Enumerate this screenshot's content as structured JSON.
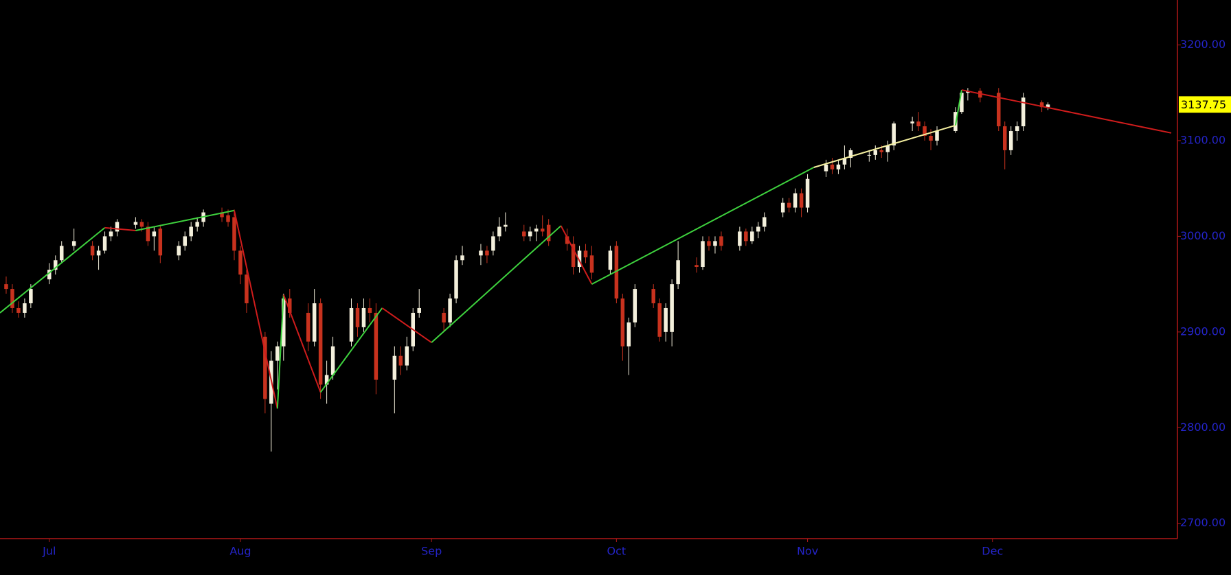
{
  "chart_data": {
    "type": "candlestick",
    "xlim": [
      0,
      191
    ],
    "ylim": [
      2684,
      3247
    ],
    "xticks": [
      {
        "value": 8,
        "label": "Jul"
      },
      {
        "value": 39,
        "label": "Aug"
      },
      {
        "value": 70,
        "label": "Sep"
      },
      {
        "value": 100,
        "label": "Oct"
      },
      {
        "value": 131,
        "label": "Nov"
      },
      {
        "value": 161,
        "label": "Dec"
      }
    ],
    "yticks": [
      {
        "value": 2700,
        "label": "2700.00"
      },
      {
        "value": 2800,
        "label": "2800.00"
      },
      {
        "value": 2900,
        "label": "2900.00"
      },
      {
        "value": 3000,
        "label": "3000.00"
      },
      {
        "value": 3100,
        "label": "3100.00"
      },
      {
        "value": 3200,
        "label": "3200.00"
      }
    ],
    "up_color": "#f4f0dc",
    "down_color": "#c8321e",
    "axis_color": "#b01818",
    "label_color": "#2424c8",
    "x": [
      1,
      2,
      3,
      4,
      5,
      8,
      9,
      10,
      12,
      15,
      16,
      17,
      18,
      19,
      22,
      23,
      24,
      25,
      26,
      29,
      30,
      31,
      32,
      33,
      36,
      37,
      38,
      39,
      40,
      43,
      44,
      45,
      46,
      47,
      50,
      51,
      52,
      53,
      54,
      57,
      58,
      59,
      60,
      61,
      64,
      65,
      66,
      67,
      68,
      72,
      73,
      74,
      75,
      78,
      79,
      80,
      81,
      82,
      85,
      86,
      87,
      88,
      89,
      92,
      93,
      94,
      95,
      96,
      99,
      100,
      101,
      102,
      103,
      106,
      107,
      108,
      109,
      110,
      113,
      114,
      115,
      116,
      117,
      120,
      121,
      122,
      123,
      124,
      127,
      128,
      129,
      130,
      131,
      134,
      135,
      136,
      137,
      138,
      141,
      142,
      143,
      144,
      145,
      148,
      149,
      150,
      151,
      152,
      155,
      156,
      157,
      159,
      162,
      163,
      164,
      165,
      166,
      169,
      170
    ],
    "ohlc": [
      [
        2950,
        2958,
        2940,
        2945
      ],
      [
        2945,
        2950,
        2920,
        2925
      ],
      [
        2925,
        2932,
        2915,
        2920
      ],
      [
        2920,
        2935,
        2915,
        2930
      ],
      [
        2930,
        2950,
        2925,
        2945
      ],
      [
        2955,
        2972,
        2950,
        2965
      ],
      [
        2965,
        2980,
        2960,
        2975
      ],
      [
        2975,
        2995,
        2972,
        2990
      ],
      [
        2990,
        3008,
        2985,
        2995
      ],
      [
        2990,
        2995,
        2975,
        2980
      ],
      [
        2980,
        2990,
        2965,
        2985
      ],
      [
        2985,
        3005,
        2982,
        3000
      ],
      [
        3000,
        3010,
        2995,
        3005
      ],
      [
        3005,
        3018,
        3000,
        3015
      ],
      [
        3012,
        3020,
        3008,
        3015
      ],
      [
        3015,
        3018,
        3005,
        3010
      ],
      [
        3010,
        3015,
        2990,
        2995
      ],
      [
        3000,
        3010,
        2985,
        3005
      ],
      [
        3008,
        3012,
        2972,
        2980
      ],
      [
        2980,
        2995,
        2975,
        2990
      ],
      [
        2990,
        3005,
        2985,
        3000
      ],
      [
        3000,
        3015,
        2995,
        3010
      ],
      [
        3010,
        3020,
        3005,
        3015
      ],
      [
        3015,
        3028,
        3010,
        3025
      ],
      [
        3025,
        3030,
        3015,
        3020
      ],
      [
        3022,
        3028,
        3010,
        3015
      ],
      [
        3020,
        3028,
        2975,
        2985
      ],
      [
        2985,
        2990,
        2950,
        2960
      ],
      [
        2960,
        2965,
        2920,
        2930
      ],
      [
        2895,
        2900,
        2815,
        2830
      ],
      [
        2825,
        2880,
        2775,
        2870
      ],
      [
        2870,
        2890,
        2840,
        2885
      ],
      [
        2885,
        2940,
        2870,
        2935
      ],
      [
        2935,
        2945,
        2915,
        2920
      ],
      [
        2920,
        2930,
        2880,
        2890
      ],
      [
        2890,
        2945,
        2885,
        2930
      ],
      [
        2930,
        2935,
        2830,
        2845
      ],
      [
        2845,
        2870,
        2825,
        2855
      ],
      [
        2855,
        2895,
        2850,
        2885
      ],
      [
        2890,
        2935,
        2885,
        2925
      ],
      [
        2925,
        2930,
        2895,
        2905
      ],
      [
        2905,
        2935,
        2900,
        2925
      ],
      [
        2925,
        2935,
        2910,
        2920
      ],
      [
        2920,
        2930,
        2835,
        2850
      ],
      [
        2850,
        2885,
        2815,
        2875
      ],
      [
        2875,
        2885,
        2855,
        2865
      ],
      [
        2865,
        2895,
        2860,
        2885
      ],
      [
        2885,
        2925,
        2880,
        2920
      ],
      [
        2920,
        2945,
        2915,
        2925
      ],
      [
        2920,
        2925,
        2900,
        2910
      ],
      [
        2910,
        2940,
        2905,
        2935
      ],
      [
        2935,
        2980,
        2930,
        2975
      ],
      [
        2975,
        2990,
        2970,
        2980
      ],
      [
        2980,
        2992,
        2970,
        2985
      ],
      [
        2985,
        2990,
        2972,
        2980
      ],
      [
        2985,
        3005,
        2980,
        3000
      ],
      [
        3000,
        3020,
        2995,
        3010
      ],
      [
        3010,
        3025,
        3005,
        3012
      ],
      [
        3005,
        3012,
        2995,
        3000
      ],
      [
        3000,
        3010,
        2995,
        3005
      ],
      [
        3005,
        3012,
        2995,
        3008
      ],
      [
        3008,
        3022,
        3000,
        3005
      ],
      [
        3012,
        3018,
        2990,
        2995
      ],
      [
        3000,
        3008,
        2985,
        2992
      ],
      [
        2992,
        3000,
        2960,
        2968
      ],
      [
        2968,
        2990,
        2962,
        2985
      ],
      [
        2985,
        2992,
        2972,
        2978
      ],
      [
        2980,
        2990,
        2955,
        2962
      ],
      [
        2965,
        2990,
        2960,
        2985
      ],
      [
        2990,
        2995,
        2930,
        2935
      ],
      [
        2935,
        2940,
        2870,
        2885
      ],
      [
        2885,
        2915,
        2855,
        2910
      ],
      [
        2910,
        2950,
        2905,
        2945
      ],
      [
        2945,
        2950,
        2925,
        2930
      ],
      [
        2930,
        2935,
        2890,
        2895
      ],
      [
        2900,
        2930,
        2890,
        2925
      ],
      [
        2900,
        2955,
        2885,
        2950
      ],
      [
        2950,
        2995,
        2945,
        2975
      ],
      [
        2970,
        2978,
        2962,
        2968
      ],
      [
        2968,
        3000,
        2965,
        2995
      ],
      [
        2995,
        3000,
        2985,
        2990
      ],
      [
        2990,
        3000,
        2982,
        2995
      ],
      [
        3000,
        3005,
        2985,
        2990
      ],
      [
        2990,
        3010,
        2985,
        3005
      ],
      [
        3005,
        3008,
        2990,
        2995
      ],
      [
        2995,
        3010,
        2992,
        3005
      ],
      [
        3005,
        3015,
        2998,
        3010
      ],
      [
        3010,
        3025,
        3005,
        3020
      ],
      [
        3025,
        3040,
        3020,
        3035
      ],
      [
        3035,
        3040,
        3025,
        3030
      ],
      [
        3030,
        3050,
        3025,
        3045
      ],
      [
        3045,
        3050,
        3020,
        3030
      ],
      [
        3030,
        3065,
        3025,
        3060
      ],
      [
        3068,
        3080,
        3062,
        3075
      ],
      [
        3075,
        3082,
        3065,
        3070
      ],
      [
        3070,
        3080,
        3065,
        3075
      ],
      [
        3075,
        3095,
        3070,
        3082
      ],
      [
        3082,
        3092,
        3072,
        3090
      ],
      [
        3085,
        3090,
        3078,
        3085
      ],
      [
        3085,
        3095,
        3080,
        3090
      ],
      [
        3090,
        3095,
        3082,
        3088
      ],
      [
        3088,
        3100,
        3078,
        3095
      ],
      [
        3095,
        3120,
        3090,
        3118
      ],
      [
        3118,
        3125,
        3110,
        3120
      ],
      [
        3120,
        3130,
        3110,
        3115
      ],
      [
        3115,
        3120,
        3100,
        3105
      ],
      [
        3105,
        3112,
        3090,
        3100
      ],
      [
        3100,
        3115,
        3095,
        3110
      ],
      [
        3110,
        3135,
        3108,
        3130
      ],
      [
        3130,
        3152,
        3128,
        3150
      ],
      [
        3150,
        3155,
        3142,
        3152
      ],
      [
        3152,
        3155,
        3140,
        3145
      ],
      [
        3150,
        3155,
        3110,
        3115
      ],
      [
        3115,
        3120,
        3070,
        3090
      ],
      [
        3090,
        3115,
        3085,
        3110
      ],
      [
        3110,
        3120,
        3100,
        3115
      ],
      [
        3115,
        3150,
        3110,
        3145
      ],
      [
        3140,
        3142,
        3130,
        3135
      ],
      [
        3135,
        3140,
        3132,
        3137.75
      ]
    ],
    "series": [
      {
        "color": "#3ed23e",
        "x": [
          0,
          17
        ],
        "values": [
          2920,
          3009
        ]
      },
      {
        "color": "#d01c1c",
        "x": [
          17,
          22
        ],
        "values": [
          3009,
          3006
        ]
      },
      {
        "color": "#3ed23e",
        "x": [
          22,
          38
        ],
        "values": [
          3006,
          3027
        ]
      },
      {
        "color": "#d01c1c",
        "x": [
          38,
          45
        ],
        "values": [
          3027,
          2820
        ]
      },
      {
        "color": "#3ed23e",
        "x": [
          45,
          46
        ],
        "values": [
          2820,
          2939
        ]
      },
      {
        "color": "#d01c1c",
        "x": [
          46,
          52
        ],
        "values": [
          2939,
          2837
        ]
      },
      {
        "color": "#3ed23e",
        "x": [
          52,
          62
        ],
        "values": [
          2837,
          2925
        ]
      },
      {
        "color": "#d01c1c",
        "x": [
          62,
          70
        ],
        "values": [
          2925,
          2889
        ]
      },
      {
        "color": "#3ed23e",
        "x": [
          70,
          91
        ],
        "values": [
          2889,
          3011
        ]
      },
      {
        "color": "#d01c1c",
        "x": [
          91,
          96
        ],
        "values": [
          3011,
          2950
        ]
      },
      {
        "color": "#3ed23e",
        "x": [
          96,
          132
        ],
        "values": [
          2950,
          3072
        ]
      },
      {
        "color": "#f5f0a0",
        "x": [
          132,
          155
        ],
        "values": [
          3072,
          3116
        ]
      },
      {
        "color": "#3ed23e",
        "x": [
          155,
          156
        ],
        "values": [
          3116,
          3153
        ]
      },
      {
        "color": "#d01c1c",
        "x": [
          156,
          190
        ],
        "values": [
          3153,
          3108
        ]
      }
    ],
    "last_price": 3137.75,
    "last_price_color": "#ffff00"
  }
}
